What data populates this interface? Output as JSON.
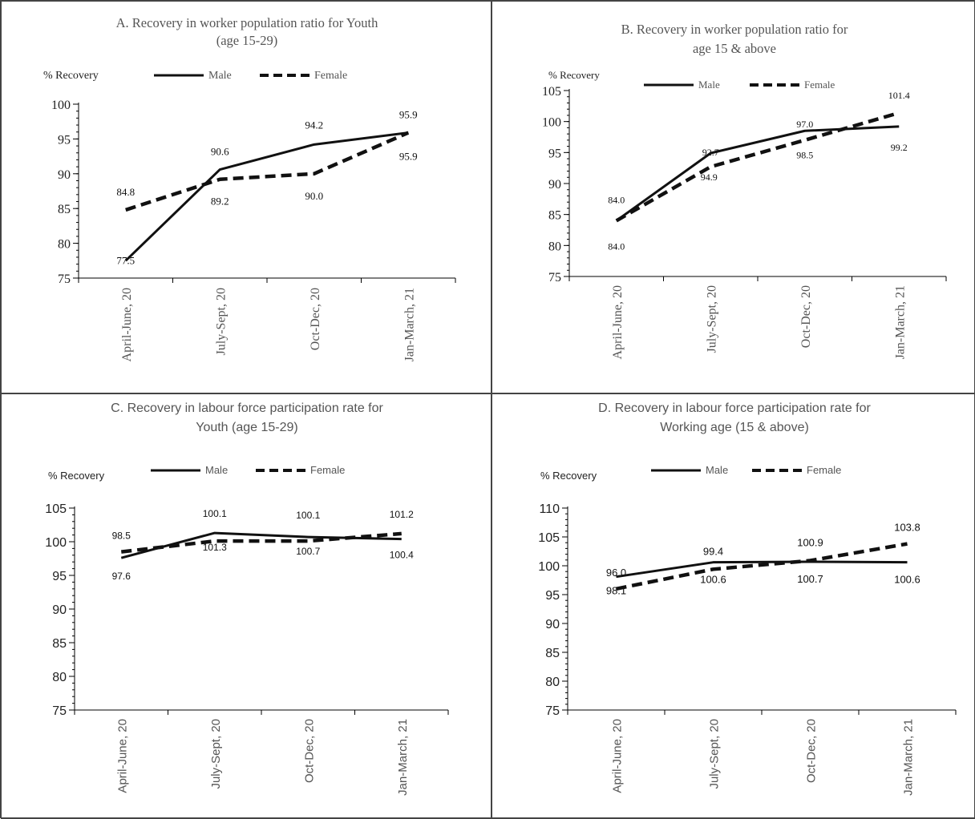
{
  "chart_data": [
    {
      "type": "line",
      "title": "A. Recovery in worker population ratio for Youth (age 15-29)",
      "title_lines": [
        "A. Recovery in worker population ratio for Youth",
        "(age 15-29)"
      ],
      "ylabel": "% Recovery",
      "categories": [
        "April-June, 20",
        "July-Sept, 20",
        "Oct-Dec, 20",
        "Jan-March, 21"
      ],
      "ylim": [
        75,
        100
      ],
      "yticks": [
        75,
        80,
        85,
        90,
        95,
        100
      ],
      "series": [
        {
          "name": "Male",
          "style": "solid",
          "values": [
            77.5,
            90.6,
            94.2,
            95.9
          ],
          "labels": [
            "77.5",
            "90.6",
            "94.2",
            "95.9"
          ]
        },
        {
          "name": "Female",
          "style": "dashed",
          "values": [
            84.8,
            89.2,
            90.0,
            95.9
          ],
          "labels": [
            "84.8",
            "89.2",
            "90.0",
            "95.9"
          ]
        }
      ],
      "font": "serif",
      "legend": "top"
    },
    {
      "type": "line",
      "title": "B. Recovery in worker population ratio for age 15 & above",
      "title_lines": [
        "B. Recovery in worker population ratio for",
        "age 15 & above"
      ],
      "ylabel": "% Recovery",
      "categories": [
        "April-June, 20",
        "July-Sept, 20",
        "Oct-Dec, 20",
        "Jan-March, 21"
      ],
      "ylim": [
        75,
        105
      ],
      "yticks": [
        75,
        80,
        85,
        90,
        95,
        100,
        105
      ],
      "series": [
        {
          "name": "Male",
          "style": "solid",
          "values": [
            84.0,
            94.9,
            98.5,
            99.2
          ],
          "labels": [
            "84.0",
            "94.9",
            "98.5",
            "99.2"
          ]
        },
        {
          "name": "Female",
          "style": "dashed",
          "values": [
            84.0,
            92.7,
            97.0,
            101.4
          ],
          "labels": [
            "84.0",
            "92.7",
            "97.0",
            "101.4"
          ]
        }
      ],
      "font": "serif",
      "legend": "top"
    },
    {
      "type": "line",
      "title": "C. Recovery in labour force participation rate for Youth (age 15-29)",
      "title_lines": [
        "C. Recovery in labour force participation rate for",
        "Youth (age 15-29)"
      ],
      "ylabel": "% Recovery",
      "categories": [
        "April-June, 20",
        "July-Sept, 20",
        "Oct-Dec, 20",
        "Jan-March, 21"
      ],
      "ylim": [
        75,
        105
      ],
      "yticks": [
        75,
        80,
        85,
        90,
        95,
        100,
        105
      ],
      "series": [
        {
          "name": "Male",
          "style": "solid",
          "values": [
            97.6,
            101.3,
            100.7,
            100.4
          ],
          "labels": [
            "97.6",
            "101.3",
            "100.7",
            "100.4"
          ]
        },
        {
          "name": "Female",
          "style": "dashed",
          "values": [
            98.5,
            100.1,
            100.1,
            101.2
          ],
          "labels": [
            "98.5",
            "100.1",
            "100.1",
            "101.2"
          ]
        }
      ],
      "font": "sans",
      "legend": "top"
    },
    {
      "type": "line",
      "title": "D. Recovery in labour force participation rate for Working age (15 & above)",
      "title_lines": [
        "D. Recovery in labour force participation rate for",
        "Working age (15 & above)"
      ],
      "ylabel": "% Recovery",
      "categories": [
        "April-June, 20",
        "July-Sept, 20",
        "Oct-Dec, 20",
        "Jan-March, 21"
      ],
      "ylim": [
        75,
        110
      ],
      "yticks": [
        75,
        80,
        85,
        90,
        95,
        100,
        105,
        110
      ],
      "series": [
        {
          "name": "Male",
          "style": "solid",
          "values": [
            98.1,
            100.6,
            100.7,
            100.6
          ],
          "labels": [
            "98.1",
            "100.6",
            "100.7",
            "100.6"
          ]
        },
        {
          "name": "Female",
          "style": "dashed",
          "values": [
            96.0,
            99.4,
            100.9,
            103.8
          ],
          "labels": [
            "96.0",
            "99.4",
            "100.9",
            "103.8"
          ]
        }
      ],
      "font": "sans",
      "legend": "top"
    }
  ]
}
